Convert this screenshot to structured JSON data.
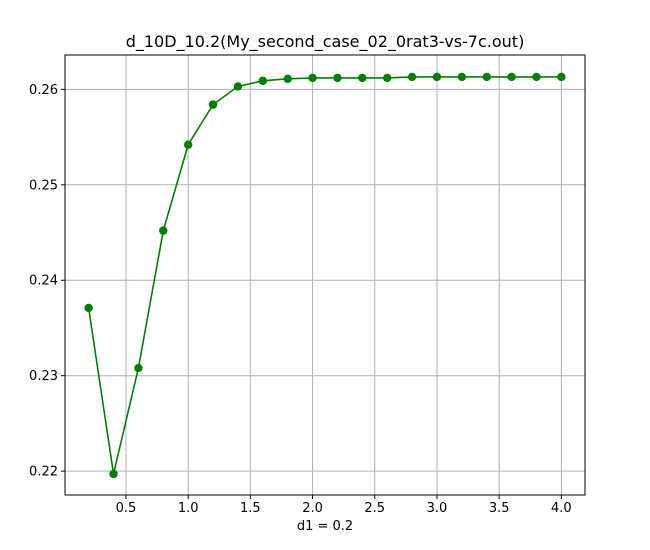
{
  "chart_data": {
    "type": "line",
    "title": "d_10D_10.2(My_second_case_02_0rat3-vs-7c.out)",
    "xlabel": "d1 = 0.2",
    "ylabel": "",
    "grid": true,
    "xlim": [
      0.01,
      4.19
    ],
    "ylim": [
      0.2175,
      0.2636
    ],
    "xticks": [
      0.5,
      1.0,
      1.5,
      2.0,
      2.5,
      3.0,
      3.5,
      4.0
    ],
    "xtick_labels": [
      "0.5",
      "1.0",
      "1.5",
      "2.0",
      "2.5",
      "3.0",
      "3.5",
      "4.0"
    ],
    "yticks": [
      0.22,
      0.23,
      0.24,
      0.25,
      0.26
    ],
    "ytick_labels": [
      "0.22",
      "0.23",
      "0.24",
      "0.25",
      "0.26"
    ],
    "series": [
      {
        "color": "#008000",
        "marker": "circle",
        "x": [
          0.2,
          0.4,
          0.6,
          0.8,
          1.0,
          1.2,
          1.4,
          1.6,
          1.8,
          2.0,
          2.2,
          2.4,
          2.6,
          2.8,
          3.0,
          3.2,
          3.4,
          3.6,
          3.8,
          4.0
        ],
        "y": [
          0.2371,
          0.2197,
          0.2308,
          0.2452,
          0.2542,
          0.2584,
          0.2603,
          0.2609,
          0.2611,
          0.2612,
          0.2612,
          0.2612,
          0.2612,
          0.2613,
          0.2613,
          0.2613,
          0.2613,
          0.2613,
          0.2613,
          0.2613
        ]
      }
    ]
  }
}
